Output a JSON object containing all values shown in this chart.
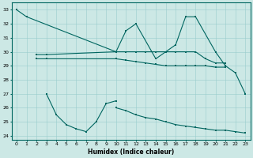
{
  "bg_color": "#cce8e5",
  "line_color": "#006660",
  "grid_color": "#99cccc",
  "xlabel": "Humidex (Indice chaleur)",
  "xlim": [
    -0.5,
    23.5
  ],
  "ylim": [
    23.7,
    33.5
  ],
  "yticks": [
    24,
    25,
    26,
    27,
    28,
    29,
    30,
    31,
    32,
    33
  ],
  "xticks": [
    0,
    1,
    2,
    3,
    4,
    5,
    6,
    7,
    8,
    9,
    10,
    11,
    12,
    13,
    14,
    15,
    16,
    17,
    18,
    19,
    20,
    21,
    22,
    23
  ],
  "lines": [
    {
      "x": [
        0,
        1,
        10,
        11,
        12,
        14,
        15,
        16,
        17,
        18,
        20,
        21,
        22,
        23
      ],
      "y": [
        33,
        32.5,
        30.0,
        31.5,
        32.0,
        29.5,
        30.0,
        30.5,
        32.5,
        32.5,
        30.0,
        29.0,
        28.5,
        27.0
      ]
    },
    {
      "x": [
        2,
        3,
        10,
        11,
        12,
        13,
        14,
        15,
        16,
        17,
        18,
        19,
        20,
        21
      ],
      "y": [
        29.8,
        29.8,
        30.0,
        30.0,
        30.0,
        30.0,
        30.0,
        30.0,
        30.0,
        30.0,
        30.0,
        29.5,
        29.2,
        29.2
      ]
    },
    {
      "x": [
        2,
        3,
        10,
        11,
        12,
        13,
        14,
        15,
        16,
        17,
        18,
        19,
        20,
        21
      ],
      "y": [
        29.5,
        29.5,
        29.5,
        29.4,
        29.3,
        29.2,
        29.1,
        29.0,
        29.0,
        29.0,
        29.0,
        29.0,
        28.9,
        28.9
      ]
    },
    {
      "x": [
        3,
        4,
        5,
        6,
        7,
        8,
        9,
        10
      ],
      "y": [
        27.0,
        25.5,
        24.8,
        24.5,
        24.3,
        25.0,
        26.3,
        26.5
      ]
    },
    {
      "x": [
        10,
        11,
        12,
        13,
        14,
        15,
        16,
        17,
        18,
        19,
        20,
        21,
        22,
        23
      ],
      "y": [
        26.0,
        25.8,
        25.5,
        25.3,
        25.2,
        25.0,
        24.8,
        24.7,
        24.6,
        24.5,
        24.4,
        24.4,
        24.3,
        24.2
      ]
    }
  ]
}
